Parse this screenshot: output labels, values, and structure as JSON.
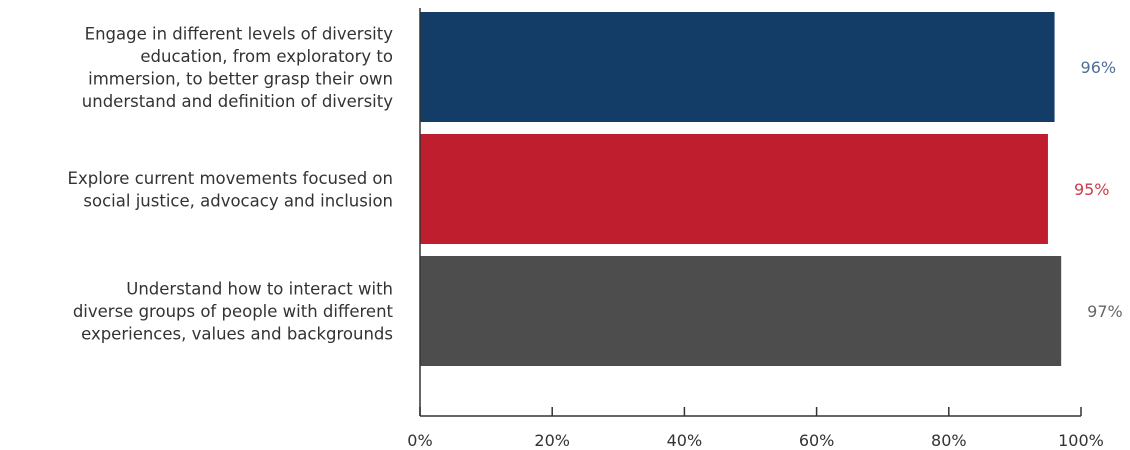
{
  "chart_data": {
    "type": "bar",
    "orientation": "horizontal",
    "categories": [
      [
        "Engage in different levels of diversity",
        "education, from exploratory to",
        "immersion, to better grasp their own",
        "understand and definition of diversity"
      ],
      [
        "Explore current movements focused on",
        "social justice, advocacy and inclusion"
      ],
      [
        "Understand how to interact with",
        "diverse groups of people with different",
        "experiences, values and backgrounds"
      ]
    ],
    "values": [
      96,
      95,
      97
    ],
    "value_labels": [
      "96%",
      "95%",
      "97%"
    ],
    "bar_colors": [
      "#133c66",
      "#be1e2d",
      "#4d4d4d"
    ],
    "value_label_colors": [
      "#4f6f94",
      "#cf3b4a",
      "#666666"
    ],
    "xlim": [
      0,
      100
    ],
    "x_ticks": [
      0,
      20,
      40,
      60,
      80,
      100
    ],
    "x_tick_labels": [
      "0%",
      "20%",
      "40%",
      "60%",
      "80%",
      "100%"
    ],
    "grid": false,
    "legend": "none"
  }
}
